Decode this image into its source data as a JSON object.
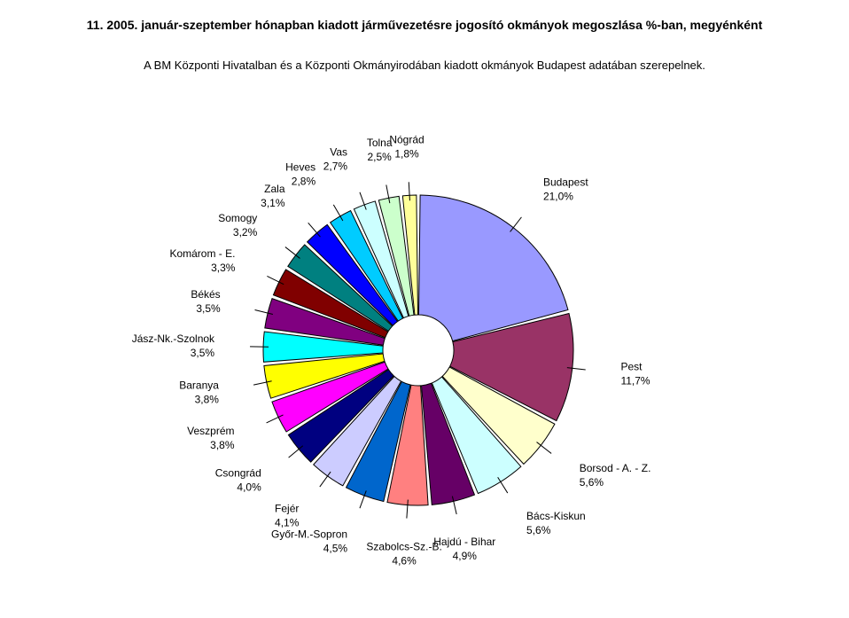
{
  "chart_data": {
    "type": "pie",
    "title": "11. 2005. január-szeptember hónapban kiadott járművezetésre jogosító okmányok megoszlása %-ban, megyénként",
    "subtitle": "A BM Központi Hivatalban és a Központi Okmányirodában kiadott okmányok Budapest adatában szerepelnek.",
    "unit": "%",
    "slices": [
      {
        "name": "Budapest",
        "value": 21.0,
        "label": "21,0%",
        "color": "#9999ff"
      },
      {
        "name": "Pest",
        "value": 11.7,
        "label": "11,7%",
        "color": "#993366"
      },
      {
        "name": "Borsod - A. - Z.",
        "value": 5.6,
        "label": "5,6%",
        "color": "#ffffcc"
      },
      {
        "name": "Bács-Kiskun",
        "value": 5.6,
        "label": "5,6%",
        "color": "#ccffff"
      },
      {
        "name": "Hajdú - Bihar",
        "value": 4.9,
        "label": "4,9%",
        "color": "#660066"
      },
      {
        "name": "Szabolcs-Sz.-B.",
        "value": 4.6,
        "label": "4,6%",
        "color": "#ff8080"
      },
      {
        "name": "Győr-M.-Sopron",
        "value": 4.5,
        "label": "4,5%",
        "color": "#0066cc"
      },
      {
        "name": "Fejér",
        "value": 4.1,
        "label": "4,1%",
        "color": "#ccccff"
      },
      {
        "name": "Csongrád",
        "value": 4.0,
        "label": "4,0%",
        "color": "#000080"
      },
      {
        "name": "Veszprém",
        "value": 3.8,
        "label": "3,8%",
        "color": "#ff00ff"
      },
      {
        "name": "Baranya",
        "value": 3.8,
        "label": "3,8%",
        "color": "#ffff00"
      },
      {
        "name": "Jász-Nk.-Szolnok",
        "value": 3.5,
        "label": "3,5%",
        "color": "#00ffff"
      },
      {
        "name": "Békés",
        "value": 3.5,
        "label": "3,5%",
        "color": "#800080"
      },
      {
        "name": "Komárom - E.",
        "value": 3.3,
        "label": "3,3%",
        "color": "#800000"
      },
      {
        "name": "Somogy",
        "value": 3.2,
        "label": "3,2%",
        "color": "#008080"
      },
      {
        "name": "Zala",
        "value": 3.1,
        "label": "3,1%",
        "color": "#0000ff"
      },
      {
        "name": "Heves",
        "value": 2.8,
        "label": "2,8%",
        "color": "#00ccff"
      },
      {
        "name": "Vas",
        "value": 2.7,
        "label": "2,7%",
        "color": "#ccffff"
      },
      {
        "name": "Tolna",
        "value": 2.5,
        "label": "2,5%",
        "color": "#ccffcc"
      },
      {
        "name": "Nógrád",
        "value": 1.8,
        "label": "1,8%",
        "color": "#ffff99"
      }
    ],
    "start": "12 o'clock",
    "direction": "clockwise",
    "exploded": true,
    "legend": "none, data labels beside slices"
  }
}
